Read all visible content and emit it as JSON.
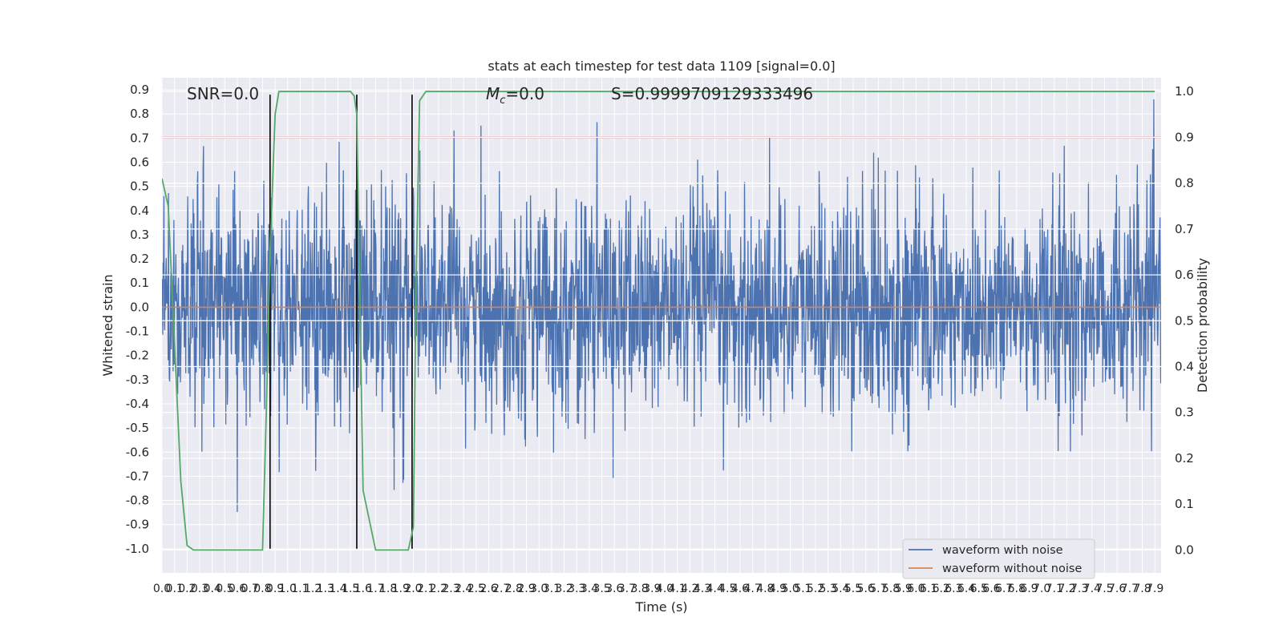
{
  "chart_data": {
    "type": "line",
    "title": "stats at each timestep for test data 1109 [signal=0.0]",
    "xlabel": "Time (s)",
    "ylabel": "Whitened strain",
    "y2label": "Detection probability",
    "xlim": [
      0.0,
      7.95
    ],
    "ylim": [
      -1.1,
      0.95
    ],
    "y2lim": [
      -0.05,
      1.03
    ],
    "x_ticks": [
      0.0,
      0.1,
      0.2,
      0.3,
      0.4,
      0.5,
      0.6,
      0.7,
      0.8,
      0.9,
      1.0,
      1.1,
      1.2,
      1.3,
      1.4,
      1.5,
      1.6,
      1.7,
      1.8,
      1.9,
      2.0,
      2.1,
      2.2,
      2.3,
      2.4,
      2.5,
      2.6,
      2.7,
      2.8,
      2.9,
      3.0,
      3.1,
      3.2,
      3.3,
      3.4,
      3.5,
      3.6,
      3.7,
      3.8,
      3.9,
      4.0,
      4.1,
      4.2,
      4.3,
      4.4,
      4.5,
      4.6,
      4.7,
      4.8,
      4.9,
      5.0,
      5.1,
      5.2,
      5.3,
      5.4,
      5.5,
      5.6,
      5.7,
      5.8,
      5.9,
      6.0,
      6.1,
      6.2,
      6.3,
      6.4,
      6.5,
      6.6,
      6.7,
      6.8,
      6.9,
      7.0,
      7.1,
      7.2,
      7.3,
      7.4,
      7.5,
      7.6,
      7.7,
      7.8,
      7.9
    ],
    "y_ticks": [
      -1.0,
      -0.9,
      -0.8,
      -0.7,
      -0.6,
      -0.5,
      -0.4,
      -0.3,
      -0.2,
      -0.1,
      0.0,
      0.1,
      0.2,
      0.3,
      0.4,
      0.5,
      0.6,
      0.7,
      0.8,
      0.9
    ],
    "y2_ticks": [
      0.0,
      0.1,
      0.2,
      0.3,
      0.4,
      0.5,
      0.6,
      0.7,
      0.8,
      0.9,
      1.0
    ],
    "grid": true,
    "legend_position": "lower-right",
    "annotations": {
      "snr": "SNR=0.0",
      "mc_symbol": "M",
      "mc_sub": "c",
      "mc_value": "=0.0",
      "s": "S=0.9999709129333496"
    },
    "series": [
      {
        "name": "waveform with noise",
        "color": "#4c72b0",
        "description_type": "noise",
        "amplitude_typical": 0.3,
        "peak_range": [
          -1.0,
          0.88
        ]
      },
      {
        "name": "waveform without noise",
        "color": "#dd8452",
        "x": [
          0.0,
          7.95
        ],
        "values": [
          0.0,
          0.0
        ]
      }
    ],
    "detection_probability": {
      "color": "#55a868",
      "axis": "right",
      "x": [
        0.0,
        0.05,
        0.1,
        0.15,
        0.2,
        0.25,
        0.3,
        0.4,
        0.5,
        0.6,
        0.7,
        0.8,
        0.83,
        0.86,
        0.9,
        0.93,
        0.95,
        1.0,
        1.2,
        1.4,
        1.5,
        1.53,
        1.55,
        1.6,
        1.7,
        1.8,
        1.9,
        1.96,
        2.0,
        2.02,
        2.05,
        2.1,
        2.2,
        3.0,
        5.0,
        7.9
      ],
      "values": [
        0.81,
        0.75,
        0.45,
        0.15,
        0.01,
        0.0,
        0.0,
        0.0,
        0.0,
        0.0,
        0.0,
        0.0,
        0.3,
        0.65,
        0.95,
        1.0,
        1.0,
        1.0,
        1.0,
        1.0,
        1.0,
        0.99,
        0.95,
        0.13,
        0.0,
        0.0,
        0.0,
        0.0,
        0.05,
        0.55,
        0.98,
        1.0,
        1.0,
        1.0,
        1.0,
        1.0
      ]
    },
    "threshold": {
      "color": "#c44e52",
      "axis": "right",
      "value": 0.9
    },
    "vertical_markers": {
      "color": "#000000",
      "x": [
        0.86,
        1.55,
        1.99
      ],
      "y_range": [
        -1.0,
        0.88
      ]
    }
  }
}
